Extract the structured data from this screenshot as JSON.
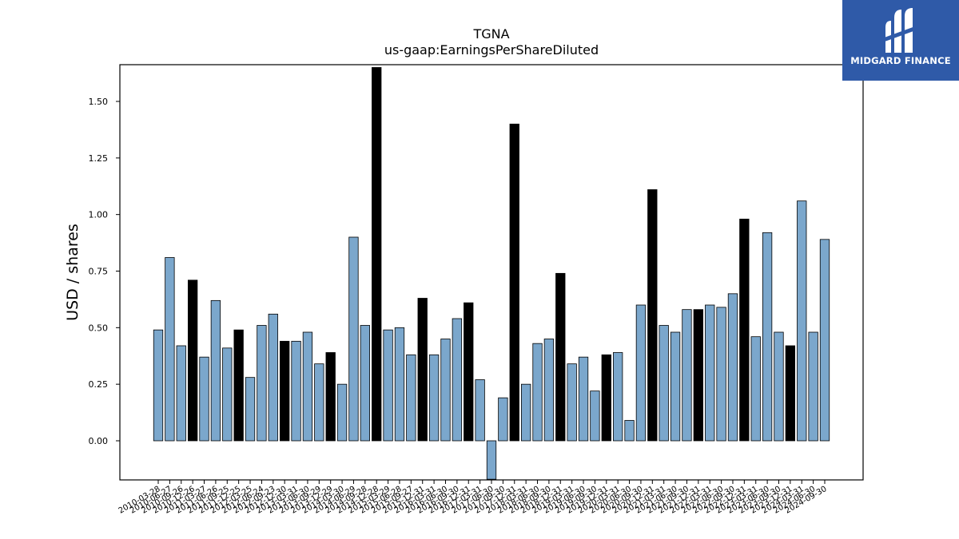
{
  "chart_data": {
    "type": "bar",
    "title": "TGNA",
    "subtitle": "us-gaap:EarningsPerShareDiluted",
    "xlabel": "",
    "ylabel": "USD / shares",
    "ylim": [
      -0.17,
      1.65
    ],
    "yticks": [
      "0.00",
      "0.25",
      "0.50",
      "0.75",
      "1.00",
      "1.25",
      "1.50"
    ],
    "ytick_values": [
      0,
      0.25,
      0.5,
      0.75,
      1.0,
      1.25,
      1.5
    ],
    "grid": false,
    "colors": {
      "quarterly": "#7ba7cc",
      "annual": "#000000",
      "edge": "#000000"
    },
    "categories": [
      "2010-03-28",
      "2010-06-27",
      "2010-09-26",
      "2010-12-26",
      "2011-03-27",
      "2011-06-26",
      "2011-09-25",
      "2011-12-25",
      "2012-03-25",
      "2012-06-24",
      "2012-09-23",
      "2012-12-30",
      "2013-03-31",
      "2013-06-30",
      "2013-09-29",
      "2013-12-29",
      "2014-03-30",
      "2014-06-29",
      "2014-09-28",
      "2014-12-28",
      "2015-03-29",
      "2015-06-28",
      "2015-09-27",
      "2015-12-31",
      "2016-03-31",
      "2016-06-30",
      "2016-09-30",
      "2016-12-31",
      "2017-03-31",
      "2017-06-30",
      "2017-09-30",
      "2017-12-31",
      "2018-03-31",
      "2018-06-30",
      "2018-09-30",
      "2018-12-31",
      "2019-03-31",
      "2019-06-30",
      "2019-09-30",
      "2019-12-31",
      "2020-03-31",
      "2020-06-30",
      "2020-09-30",
      "2020-12-31",
      "2021-03-31",
      "2021-06-30",
      "2021-09-30",
      "2021-12-31",
      "2022-03-31",
      "2022-06-30",
      "2022-09-30",
      "2022-12-31",
      "2023-03-31",
      "2023-06-30",
      "2023-09-30",
      "2023-12-31",
      "2024-03-31",
      "2024-06-30",
      "2024-09-30"
    ],
    "values": [
      0.49,
      0.81,
      0.42,
      0.71,
      0.37,
      0.62,
      0.41,
      0.49,
      0.28,
      0.51,
      0.56,
      0.44,
      0.44,
      0.48,
      0.34,
      0.39,
      0.25,
      0.9,
      0.51,
      1.65,
      0.49,
      0.5,
      0.38,
      0.63,
      0.38,
      0.45,
      0.54,
      0.61,
      0.27,
      -0.17,
      0.19,
      1.4,
      0.25,
      0.43,
      0.45,
      0.74,
      0.34,
      0.37,
      0.22,
      0.38,
      0.39,
      0.09,
      0.6,
      1.11,
      0.51,
      0.48,
      0.58,
      0.58,
      0.6,
      0.59,
      0.65,
      0.98,
      0.46,
      0.92,
      0.48,
      0.42,
      1.06,
      0.48,
      0.89
    ],
    "annual": [
      3,
      7,
      11,
      15,
      19,
      23,
      27,
      31,
      35,
      39,
      43,
      47,
      51,
      55
    ]
  },
  "logo": {
    "text": "MIDGARD FINANCE"
  }
}
